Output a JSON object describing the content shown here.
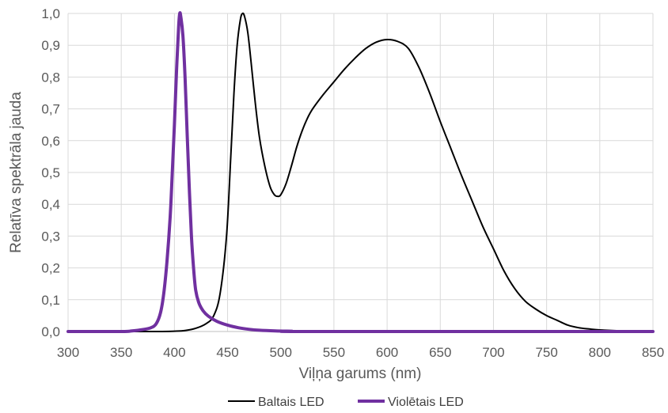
{
  "chart_data": {
    "type": "line",
    "title": "",
    "xlabel": "Viļņa garums (nm)",
    "ylabel": "Relatīva spektrāla jauda",
    "xlim": [
      300,
      850
    ],
    "ylim": [
      0,
      1.0
    ],
    "x_ticks": [
      300,
      350,
      400,
      450,
      500,
      550,
      600,
      650,
      700,
      750,
      800,
      850
    ],
    "x_tick_labels": [
      "300",
      "350",
      "400",
      "450",
      "500",
      "550",
      "600",
      "650",
      "700",
      "750",
      "800",
      "850"
    ],
    "y_ticks": [
      0,
      0.1,
      0.2,
      0.3,
      0.4,
      0.5,
      0.6,
      0.7,
      0.8,
      0.9,
      1.0
    ],
    "y_tick_labels": [
      "0,0",
      "0,1",
      "0,2",
      "0,3",
      "0,4",
      "0,5",
      "0,6",
      "0,7",
      "0,8",
      "0,9",
      "1,0"
    ],
    "grid": true,
    "legend_position": "bottom",
    "series": [
      {
        "name": "Baltais LED",
        "color": "#000000",
        "points": [
          [
            300,
            0
          ],
          [
            380,
            0
          ],
          [
            400,
            0.001
          ],
          [
            410,
            0.003
          ],
          [
            420,
            0.01
          ],
          [
            430,
            0.025
          ],
          [
            437,
            0.05
          ],
          [
            443,
            0.12
          ],
          [
            449,
            0.3
          ],
          [
            453,
            0.55
          ],
          [
            456,
            0.75
          ],
          [
            459,
            0.9
          ],
          [
            462,
            0.98
          ],
          [
            464,
            1.0
          ],
          [
            466,
            0.99
          ],
          [
            469,
            0.94
          ],
          [
            472,
            0.85
          ],
          [
            476,
            0.72
          ],
          [
            480,
            0.61
          ],
          [
            485,
            0.52
          ],
          [
            490,
            0.455
          ],
          [
            494,
            0.43
          ],
          [
            497,
            0.425
          ],
          [
            500,
            0.43
          ],
          [
            505,
            0.465
          ],
          [
            510,
            0.52
          ],
          [
            515,
            0.58
          ],
          [
            520,
            0.63
          ],
          [
            525,
            0.67
          ],
          [
            530,
            0.7
          ],
          [
            540,
            0.745
          ],
          [
            550,
            0.785
          ],
          [
            560,
            0.825
          ],
          [
            570,
            0.86
          ],
          [
            580,
            0.89
          ],
          [
            590,
            0.91
          ],
          [
            600,
            0.918
          ],
          [
            610,
            0.912
          ],
          [
            620,
            0.89
          ],
          [
            630,
            0.83
          ],
          [
            640,
            0.75
          ],
          [
            650,
            0.66
          ],
          [
            660,
            0.575
          ],
          [
            670,
            0.49
          ],
          [
            680,
            0.41
          ],
          [
            690,
            0.33
          ],
          [
            700,
            0.26
          ],
          [
            710,
            0.19
          ],
          [
            720,
            0.135
          ],
          [
            730,
            0.095
          ],
          [
            740,
            0.07
          ],
          [
            750,
            0.05
          ],
          [
            760,
            0.035
          ],
          [
            770,
            0.02
          ],
          [
            780,
            0.012
          ],
          [
            790,
            0.008
          ],
          [
            800,
            0.005
          ],
          [
            820,
            0.002
          ],
          [
            850,
            0
          ]
        ]
      },
      {
        "name": "Violētais LED",
        "color": "#7030A0",
        "points": [
          [
            300,
            0
          ],
          [
            350,
            0
          ],
          [
            360,
            0.002
          ],
          [
            370,
            0.006
          ],
          [
            378,
            0.012
          ],
          [
            383,
            0.025
          ],
          [
            387,
            0.06
          ],
          [
            390,
            0.12
          ],
          [
            393,
            0.22
          ],
          [
            396,
            0.36
          ],
          [
            398,
            0.5
          ],
          [
            400,
            0.65
          ],
          [
            402,
            0.82
          ],
          [
            404,
            0.96
          ],
          [
            405,
            1.0
          ],
          [
            406,
            0.99
          ],
          [
            408,
            0.93
          ],
          [
            410,
            0.8
          ],
          [
            412,
            0.62
          ],
          [
            414,
            0.45
          ],
          [
            416,
            0.3
          ],
          [
            418,
            0.2
          ],
          [
            420,
            0.13
          ],
          [
            423,
            0.09
          ],
          [
            427,
            0.065
          ],
          [
            432,
            0.048
          ],
          [
            440,
            0.032
          ],
          [
            450,
            0.02
          ],
          [
            460,
            0.012
          ],
          [
            470,
            0.007
          ],
          [
            480,
            0.004
          ],
          [
            495,
            0.002
          ],
          [
            510,
            0.001
          ],
          [
            530,
            0
          ],
          [
            850,
            0
          ]
        ]
      }
    ]
  }
}
